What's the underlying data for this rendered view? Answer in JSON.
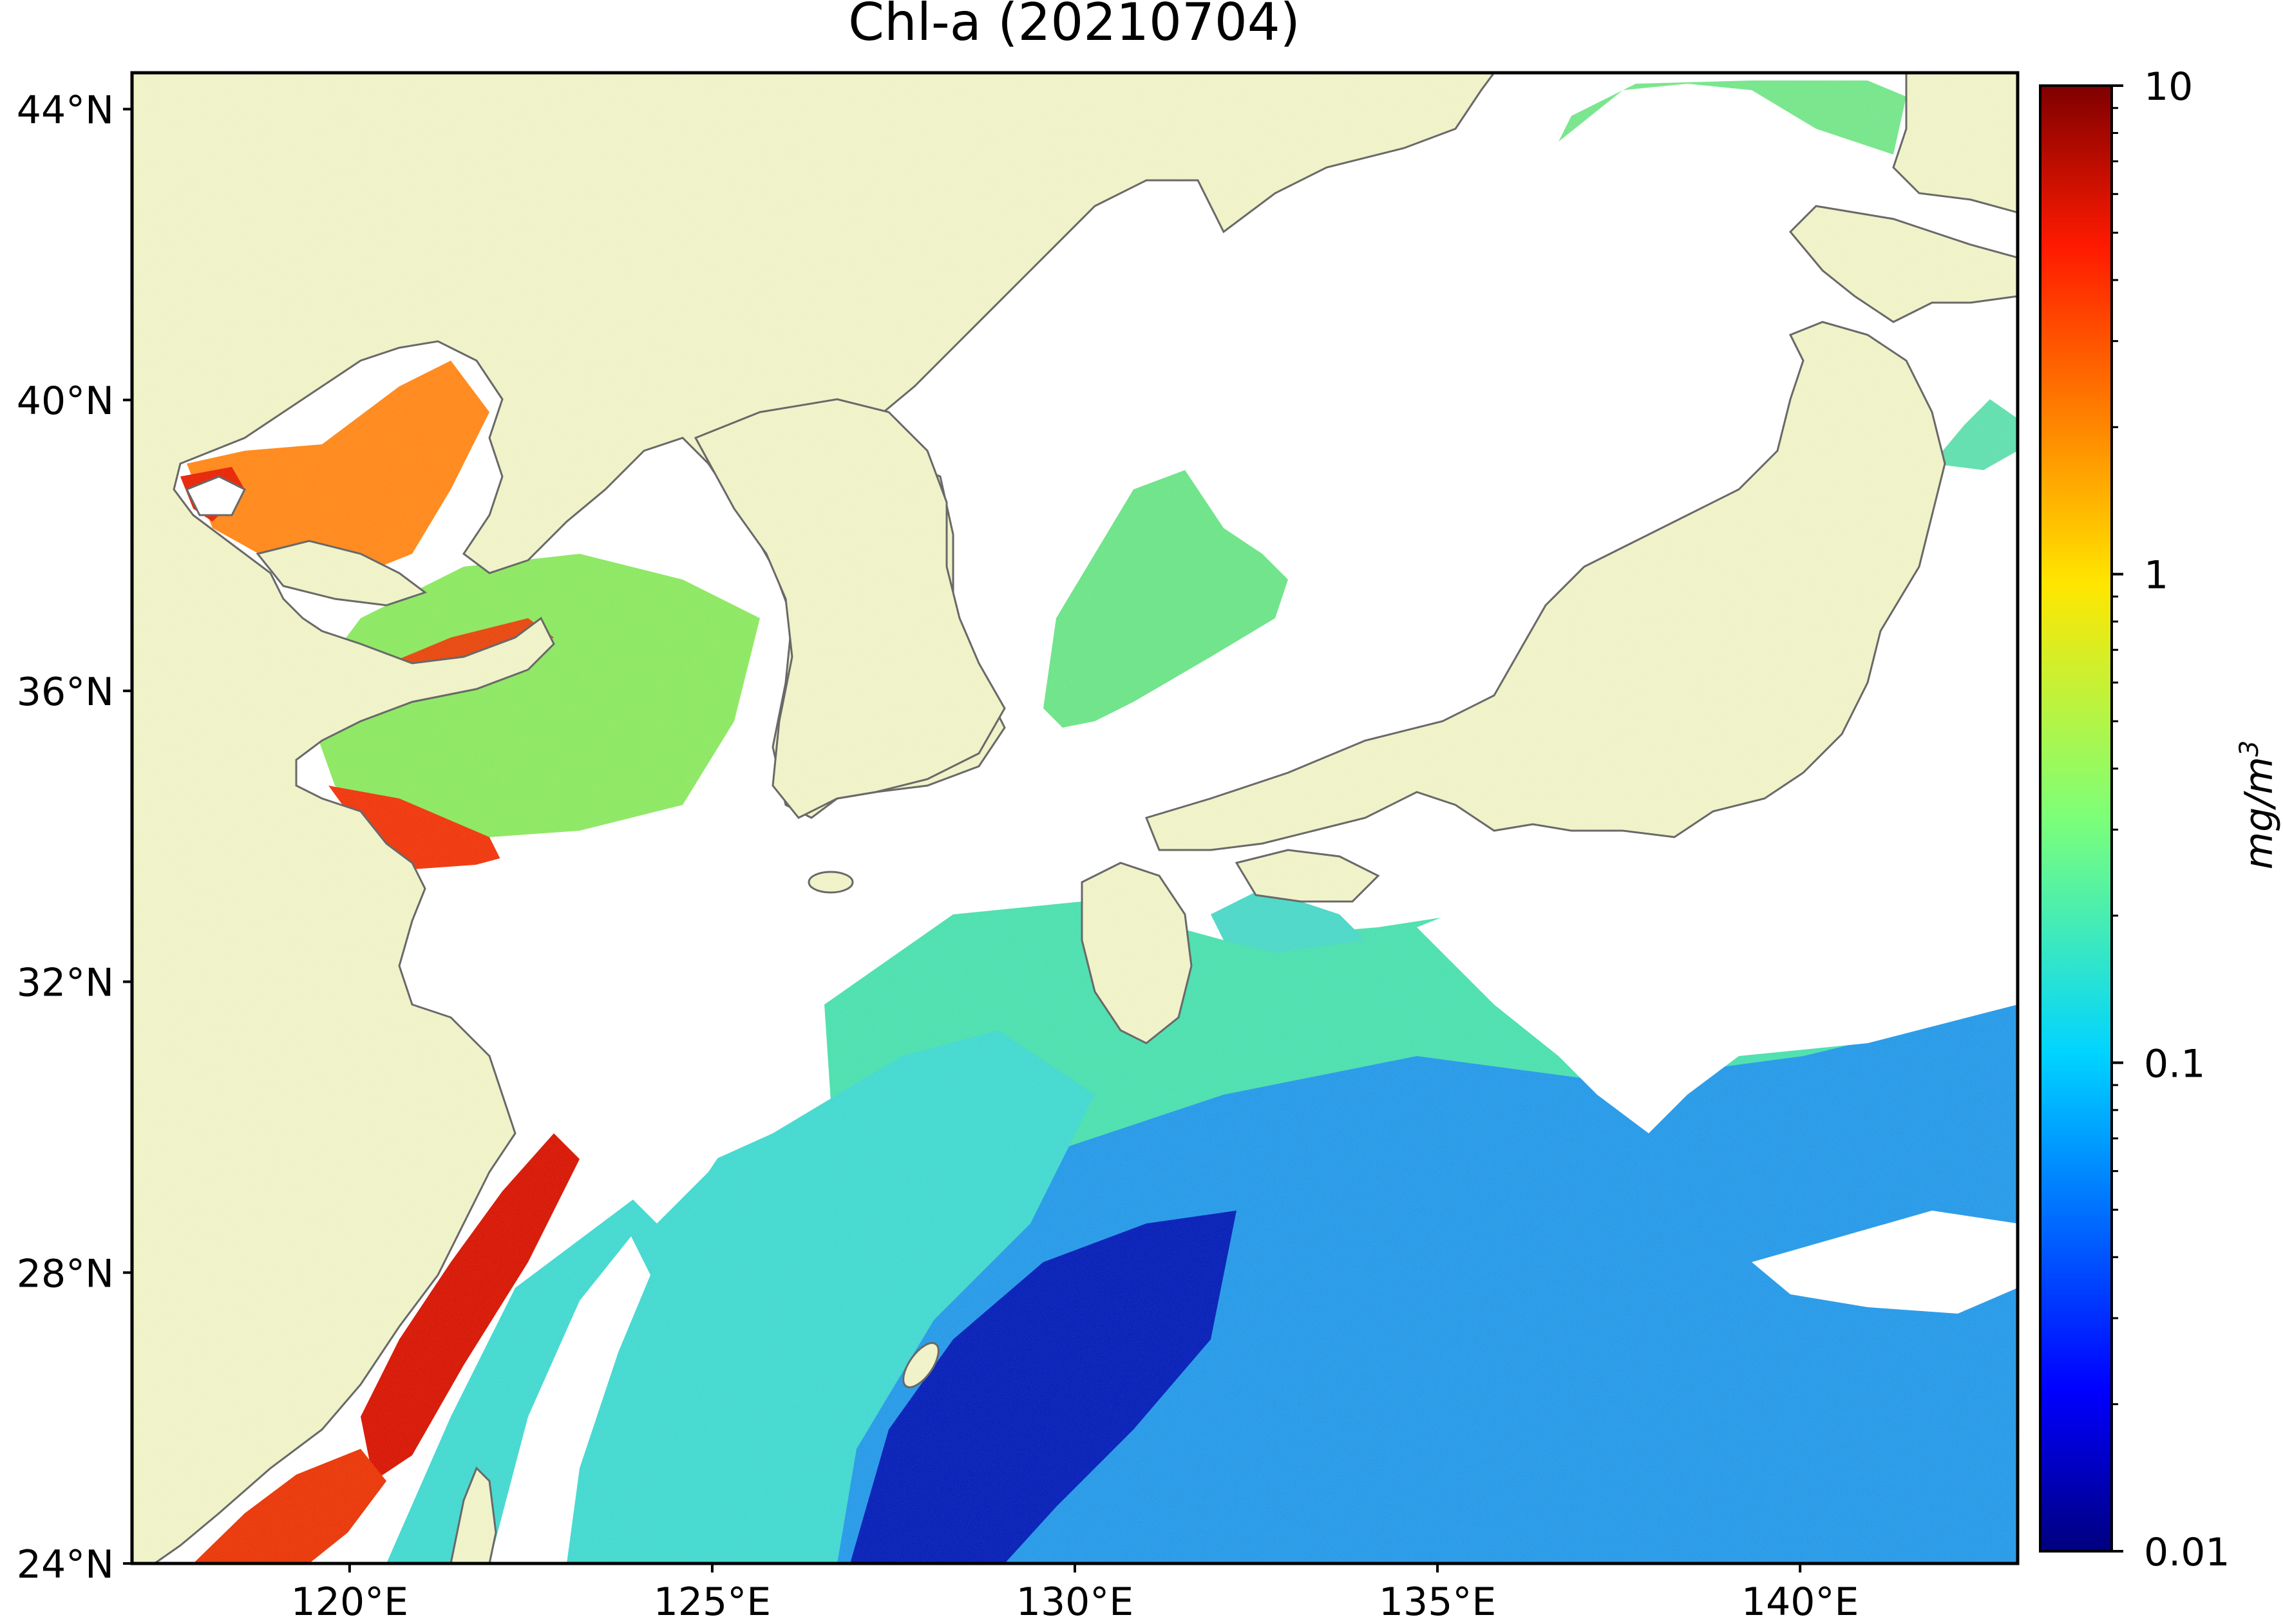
{
  "map": {
    "title": "Chl-a (20210704)",
    "lon_range": [
      117,
      143
    ],
    "lat_range": [
      24,
      44.5
    ],
    "lon_ticks": [
      {
        "value": 120,
        "label": "120°E"
      },
      {
        "value": 125,
        "label": "125°E"
      },
      {
        "value": 130,
        "label": "130°E"
      },
      {
        "value": 135,
        "label": "135°E"
      },
      {
        "value": 140,
        "label": "140°E"
      }
    ],
    "lat_ticks": [
      {
        "value": 24,
        "label": "24°N"
      },
      {
        "value": 28,
        "label": "28°N"
      },
      {
        "value": 32,
        "label": "32°N"
      },
      {
        "value": 36,
        "label": "36°N"
      },
      {
        "value": 40,
        "label": "40°N"
      },
      {
        "value": 44,
        "label": "44°N"
      }
    ],
    "colors": {
      "land": "#f0f2c8",
      "coastline": "#666666",
      "no_data": "#ffffff"
    }
  },
  "colorbar": {
    "label": "mg/m",
    "label_superscript": "3",
    "scale": "log",
    "range": [
      0.01,
      10
    ],
    "colormap": "jet",
    "ticks": [
      {
        "value": 0.01,
        "label": "0.01"
      },
      {
        "value": 0.1,
        "label": "0.1"
      },
      {
        "value": 1,
        "label": "1"
      },
      {
        "value": 10,
        "label": "10"
      }
    ]
  }
}
